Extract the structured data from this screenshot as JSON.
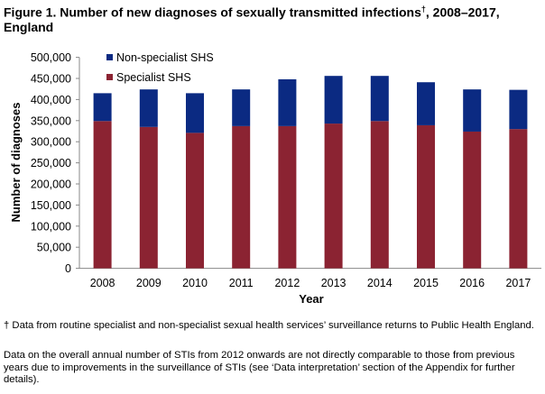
{
  "title": "Figure 1. Number of new diagnoses of sexually transmitted infections",
  "title_mark": "†",
  "title_rest": ", 2008–2017, England",
  "chart_data": {
    "type": "bar",
    "stacked": true,
    "categories": [
      "2008",
      "2009",
      "2010",
      "2011",
      "2012",
      "2013",
      "2014",
      "2015",
      "2016",
      "2017"
    ],
    "series": [
      {
        "name": "Specialist SHS",
        "color": "#8b2332",
        "values": [
          349000,
          335000,
          321000,
          337000,
          337000,
          343000,
          349000,
          339000,
          324000,
          330000
        ]
      },
      {
        "name": "Non-specialist SHS",
        "color": "#0b2a82",
        "values": [
          66000,
          89000,
          94000,
          87000,
          111000,
          113000,
          107000,
          102000,
          100000,
          93000
        ]
      }
    ],
    "xlabel": "Year",
    "ylabel": "Number of diagnoses",
    "ylim": [
      0,
      500000
    ],
    "yticks": [
      "0",
      "50,000",
      "100,000",
      "150,000",
      "200,000",
      "250,000",
      "300,000",
      "350,000",
      "400,000",
      "450,000",
      "500,000"
    ],
    "grid": false,
    "legend": "top-left"
  },
  "notes": [
    "† Data from routine specialist and non-specialist sexual health services’ surveillance returns to Public Health England.",
    "Data on the overall annual number of STIs from 2012 onwards are not directly comparable to those from previous years due to improvements in the surveillance of STIs (see ‘Data interpretation’ section of the Appendix for further details)."
  ]
}
